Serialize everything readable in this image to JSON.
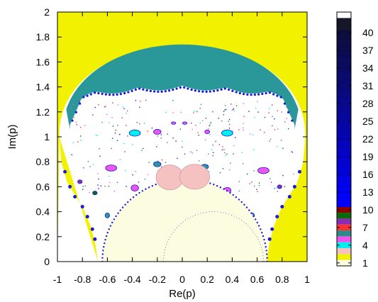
{
  "chart_data": {
    "type": "heatmap",
    "title": "",
    "xlabel": "Re(p)",
    "ylabel": "Im(p)",
    "xlim": [
      -1,
      1
    ],
    "ylim": [
      0,
      2
    ],
    "x_ticks": [
      "-1",
      "-0.8",
      "-0.6",
      "-0.4",
      "-0.2",
      "0",
      "0.2",
      "0.4",
      "0.6",
      "0.8",
      "1"
    ],
    "y_ticks": [
      "0",
      "0.2",
      "0.4",
      "0.6",
      "0.8",
      "1",
      "1.2",
      "1.4",
      "1.6",
      "1.8",
      "2"
    ],
    "colorbar": {
      "range": [
        0,
        43
      ],
      "tick_labels": [
        "1",
        "4",
        "7",
        "10",
        "13",
        "16",
        "19",
        "22",
        "25",
        "28",
        "31",
        "34",
        "37",
        "40"
      ],
      "tick_values": [
        1,
        4,
        7,
        10,
        13,
        16,
        19,
        22,
        25,
        28,
        31,
        34,
        37,
        40
      ],
      "bands": [
        {
          "from": 0,
          "to": 1,
          "color": "#fcfce0"
        },
        {
          "from": 1,
          "to": 2,
          "color": "#f2f200"
        },
        {
          "from": 2,
          "to": 3,
          "color": "#f5c1c1"
        },
        {
          "from": 3,
          "to": 4,
          "color": "#00f0f0"
        },
        {
          "from": 4,
          "to": 5,
          "color": "#ee55ee"
        },
        {
          "from": 5,
          "to": 6,
          "color": "#2b8a8a"
        },
        {
          "from": 6,
          "to": 7,
          "color": "#ff3030"
        },
        {
          "from": 7,
          "to": 8,
          "color": "#8a2bb0"
        },
        {
          "from": 8,
          "to": 9,
          "color": "#0b6b0b"
        },
        {
          "from": 9,
          "to": 10,
          "color": "#8b0000"
        },
        {
          "from": 10,
          "to": 40,
          "color_from": "#0000ff",
          "color_to": "#0d0d3a"
        },
        {
          "from": 40,
          "to": 42,
          "color": "#161628"
        },
        {
          "from": 42,
          "to": 43,
          "color": "#ffffff"
        }
      ]
    },
    "colors": {
      "outside": "#f2f200",
      "interior_bulb": "#fcfce0",
      "cap_region": "#2a9898",
      "pink_lobes": "#f5c1c1",
      "cyan_spots": "#00f0f0",
      "magenta_spots": "#ee55ee",
      "boundary_blue": "#1a1ad8",
      "background": "#ffffff"
    }
  }
}
